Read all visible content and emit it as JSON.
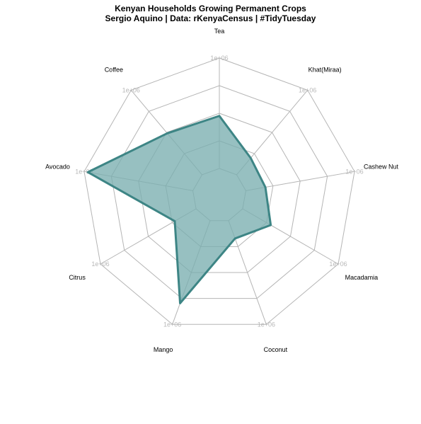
{
  "chart_data": {
    "type": "radar",
    "title": "Kenyan Households Growing Permanent Crops",
    "subtitle": "Sergio Aquino | Data: rKenyaCensus | #TidyTuesday",
    "categories": [
      "Tea",
      "Khat(Miraa)",
      "Cashew Nut",
      "Macadamia",
      "Coconut",
      "Mango",
      "Citrus",
      "Avocado",
      "Coffee"
    ],
    "values": [
      476000,
      198000,
      180000,
      294000,
      172000,
      796000,
      223000,
      966000,
      490000
    ],
    "range": [
      0,
      1000000
    ],
    "grid_levels": 5,
    "axis_tick_label": "1e+06",
    "series_color": "#3d8585",
    "fill_color": "#7aaeb0",
    "grid": true,
    "legend": "none"
  }
}
